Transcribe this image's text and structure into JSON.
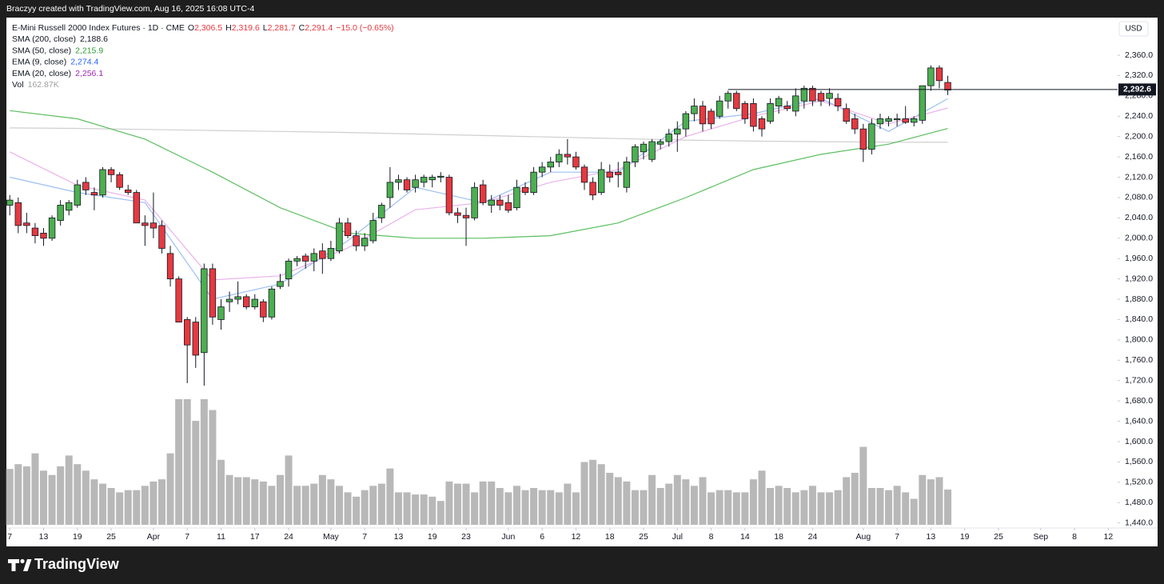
{
  "attribution": "Braczyy created with TradingView.com, Aug 16, 2025 16:08 UTC-4",
  "brand": "TradingView",
  "chart_data": {
    "type": "candlestick",
    "symbol": "E-Mini Russell 2000 Index Futures · 1D · CME",
    "ohlc_legend": [
      {
        "key": "O",
        "value": 2306.5,
        "label": "2,306.5"
      },
      {
        "key": "H",
        "value": 2319.6,
        "label": "2,319.6"
      },
      {
        "key": "L",
        "value": 2281.7,
        "label": "2,281.7"
      },
      {
        "key": "C",
        "value": 2291.4,
        "label": "2,291.4"
      }
    ],
    "change": {
      "value": -15.0,
      "label": "−15.0 (−0.65%)"
    },
    "currency": "USD",
    "up_color": "#4caf50",
    "down_color": "#e53940",
    "open": [
      2065,
      2070,
      2030,
      2020,
      2010,
      2000,
      2035,
      2055,
      2065,
      2110,
      2090,
      2085,
      2135,
      2125,
      2095,
      2090,
      2030,
      2030,
      2025,
      1970,
      1920,
      1840,
      1835,
      1775,
      1940,
      1840,
      1875,
      1880,
      1885,
      1865,
      1875,
      1845,
      1905,
      1920,
      1955,
      1965,
      1955,
      1975,
      1960,
      1975,
      2030,
      2005,
      1985,
      1995,
      2040,
      2080,
      2110,
      2115,
      2100,
      2110,
      2115,
      2120,
      2120,
      2050,
      2045,
      2040,
      2105,
      2065,
      2075,
      2070,
      2060,
      2100,
      2090,
      2130,
      2140,
      2150,
      2165,
      2160,
      2140,
      2110,
      2090,
      2130,
      2130,
      2100,
      2150,
      2170,
      2155,
      2185,
      2190,
      2205,
      2215,
      2245,
      2260,
      2250,
      2240,
      2270,
      2285,
      2265,
      2265,
      2235,
      2230,
      2260,
      2260,
      2250,
      2270,
      2295,
      2285,
      2275,
      2275,
      2255,
      2235,
      2215,
      2175,
      2225,
      2230,
      2233,
      2235,
      2228,
      2232,
      2300,
      2335,
      2306.5
    ],
    "high": [
      2085,
      2080,
      2050,
      2030,
      2020,
      2045,
      2075,
      2075,
      2115,
      2120,
      2100,
      2140,
      2140,
      2130,
      2105,
      2095,
      2045,
      2090,
      2035,
      1985,
      1925,
      1845,
      1845,
      1950,
      1950,
      1880,
      1895,
      1915,
      1890,
      1890,
      1880,
      1905,
      1930,
      1960,
      1965,
      1970,
      1980,
      1990,
      1995,
      2040,
      2040,
      2015,
      2010,
      2050,
      2070,
      2140,
      2125,
      2120,
      2125,
      2125,
      2125,
      2130,
      2125,
      2060,
      2060,
      2110,
      2115,
      2085,
      2085,
      2085,
      2115,
      2110,
      2140,
      2150,
      2160,
      2175,
      2195,
      2170,
      2145,
      2120,
      2150,
      2145,
      2150,
      2160,
      2185,
      2190,
      2195,
      2195,
      2215,
      2230,
      2250,
      2275,
      2270,
      2255,
      2280,
      2290,
      2290,
      2270,
      2275,
      2240,
      2275,
      2280,
      2270,
      2295,
      2300,
      2300,
      2290,
      2295,
      2285,
      2265,
      2245,
      2225,
      2235,
      2245,
      2240,
      2245,
      2260,
      2240,
      2300,
      2340,
      2340,
      2319.6
    ],
    "low": [
      2045,
      2010,
      2010,
      1990,
      1985,
      1995,
      2025,
      2045,
      2060,
      2085,
      2055,
      2080,
      2110,
      2095,
      2085,
      2030,
      1985,
      2000,
      1970,
      1905,
      1835,
      1715,
      1745,
      1710,
      1830,
      1820,
      1855,
      1870,
      1860,
      1860,
      1835,
      1840,
      1900,
      1905,
      1945,
      1940,
      1935,
      1930,
      1955,
      1970,
      2000,
      1975,
      1975,
      1990,
      2030,
      2060,
      2095,
      2090,
      2090,
      2100,
      2100,
      2110,
      2045,
      2030,
      1985,
      2035,
      2065,
      2050,
      2055,
      2050,
      2055,
      2085,
      2085,
      2120,
      2130,
      2140,
      2145,
      2135,
      2095,
      2075,
      2085,
      2110,
      2100,
      2090,
      2140,
      2155,
      2150,
      2175,
      2180,
      2170,
      2200,
      2230,
      2210,
      2215,
      2235,
      2255,
      2250,
      2225,
      2210,
      2200,
      2225,
      2245,
      2250,
      2240,
      2255,
      2260,
      2260,
      2260,
      2250,
      2225,
      2205,
      2150,
      2165,
      2215,
      2220,
      2220,
      2225,
      2220,
      2225,
      2290,
      2295,
      2281.7
    ],
    "close": [
      2075,
      2025,
      2025,
      2005,
      2000,
      2040,
      2065,
      2070,
      2105,
      2095,
      2085,
      2135,
      2125,
      2100,
      2090,
      2030,
      2025,
      2020,
      1980,
      1920,
      1835,
      1790,
      1770,
      1940,
      1845,
      1865,
      1880,
      1885,
      1865,
      1880,
      1845,
      1900,
      1915,
      1955,
      1960,
      1955,
      1970,
      1960,
      1980,
      2030,
      2005,
      1985,
      2000,
      2035,
      2065,
      2110,
      2115,
      2095,
      2115,
      2120,
      2120,
      2122,
      2050,
      2045,
      2040,
      2100,
      2070,
      2075,
      2065,
      2055,
      2100,
      2090,
      2130,
      2140,
      2150,
      2165,
      2160,
      2140,
      2110,
      2085,
      2135,
      2120,
      2125,
      2150,
      2180,
      2185,
      2190,
      2190,
      2205,
      2215,
      2245,
      2260,
      2225,
      2225,
      2270,
      2285,
      2255,
      2235,
      2220,
      2215,
      2265,
      2275,
      2255,
      2280,
      2295,
      2270,
      2270,
      2285,
      2260,
      2230,
      2215,
      2175,
      2225,
      2235,
      2235,
      2235,
      2228,
      2235,
      2300,
      2335,
      2310,
      2291.4
    ],
    "volume": {
      "name": "Vol",
      "color": "#b8b8b8",
      "label_color": "#a0a0a0",
      "values": [
        258,
        280,
        270,
        330,
        250,
        230,
        270,
        320,
        280,
        250,
        210,
        190,
        170,
        150,
        160,
        160,
        180,
        200,
        210,
        330,
        580,
        580,
        480,
        580,
        530,
        300,
        230,
        220,
        220,
        210,
        200,
        180,
        230,
        320,
        180,
        180,
        190,
        230,
        210,
        180,
        150,
        130,
        160,
        180,
        190,
        260,
        150,
        150,
        140,
        140,
        130,
        110,
        200,
        190,
        190,
        150,
        200,
        200,
        170,
        150,
        180,
        160,
        170,
        160,
        160,
        150,
        190,
        150,
        290,
        300,
        280,
        240,
        220,
        200,
        160,
        160,
        230,
        170,
        190,
        230,
        210,
        180,
        220,
        150,
        160,
        160,
        150,
        150,
        210,
        250,
        170,
        180,
        170,
        150,
        160,
        180,
        150,
        150,
        160,
        220,
        240,
        360,
        170,
        170,
        160,
        180,
        150,
        120,
        230,
        210,
        220,
        162.87
      ],
      "last": {
        "value": 162.87,
        "label": "162.87K"
      }
    },
    "indicators": [
      {
        "name": "SMA (200, close)",
        "color": "#cfcfcf",
        "label_color": "#131722",
        "x": [
          0,
          8,
          16,
          24,
          32,
          40,
          48,
          56,
          64,
          72,
          80,
          88,
          96,
          104,
          111
        ],
        "values": [
          2217,
          2216,
          2214,
          2212,
          2210,
          2208,
          2205,
          2202,
          2199,
          2196,
          2193,
          2191,
          2190,
          2189,
          2188.6
        ],
        "last": {
          "value": 2188.6,
          "label": "2,188.6"
        }
      },
      {
        "name": "SMA (50, close)",
        "color": "#5cbf60",
        "label_color": "#2e9b35",
        "x": [
          0,
          8,
          16,
          24,
          32,
          40,
          48,
          56,
          64,
          72,
          80,
          88,
          96,
          104,
          111
        ],
        "values": [
          2251,
          2235,
          2195,
          2130,
          2060,
          2010,
          2000,
          2000,
          2005,
          2030,
          2080,
          2135,
          2165,
          2185,
          2215.9
        ],
        "last": {
          "value": 2215.9,
          "label": "2,215.9"
        }
      },
      {
        "name": "EMA (9, close)",
        "color": "#9cc0f2",
        "label_color": "#2962ff",
        "x": [
          0,
          8,
          16,
          24,
          32,
          40,
          48,
          56,
          64,
          72,
          80,
          88,
          96,
          104,
          111
        ],
        "values": [
          2120,
          2090,
          2070,
          1880,
          1910,
          1995,
          2100,
          2070,
          2130,
          2130,
          2230,
          2245,
          2275,
          2210,
          2274.4
        ],
        "last": {
          "value": 2274.4,
          "label": "2,274.4"
        }
      },
      {
        "name": "EMA (20, close)",
        "color": "#eab2ec",
        "label_color": "#9c27b0",
        "x": [
          0,
          8,
          16,
          24,
          32,
          40,
          48,
          56,
          64,
          72,
          80,
          88,
          96,
          104,
          111
        ],
        "values": [
          2170,
          2104,
          2075,
          1918,
          1926,
          1981,
          2056,
          2070,
          2110,
          2135,
          2200,
          2240,
          2270,
          2225,
          2256.1
        ],
        "last": {
          "value": 2256.1,
          "label": "2,256.1"
        }
      }
    ],
    "price_line": {
      "value": 2292.6,
      "label": "2,292.6",
      "start": 85
    },
    "xlim": [
      -0.4,
      131.1
    ],
    "xticks": [
      {
        "value": 0,
        "label": "7"
      },
      {
        "value": 4,
        "label": "13"
      },
      {
        "value": 8,
        "label": "19"
      },
      {
        "value": 12,
        "label": "25"
      },
      {
        "value": 17,
        "label": "Apr"
      },
      {
        "value": 21,
        "label": "7"
      },
      {
        "value": 25,
        "label": "11"
      },
      {
        "value": 29,
        "label": "17"
      },
      {
        "value": 33,
        "label": "24"
      },
      {
        "value": 38,
        "label": "May"
      },
      {
        "value": 42,
        "label": "7"
      },
      {
        "value": 46,
        "label": "13"
      },
      {
        "value": 50,
        "label": "19"
      },
      {
        "value": 54,
        "label": "23"
      },
      {
        "value": 59,
        "label": "Jun"
      },
      {
        "value": 63,
        "label": "6"
      },
      {
        "value": 67,
        "label": "12"
      },
      {
        "value": 71,
        "label": "18"
      },
      {
        "value": 75,
        "label": "25"
      },
      {
        "value": 79,
        "label": "Jul"
      },
      {
        "value": 83,
        "label": "8"
      },
      {
        "value": 87,
        "label": "14"
      },
      {
        "value": 91,
        "label": "18"
      },
      {
        "value": 95,
        "label": "24"
      },
      {
        "value": 101,
        "label": "Aug"
      },
      {
        "value": 105,
        "label": "7"
      },
      {
        "value": 109,
        "label": "13"
      },
      {
        "value": 113,
        "label": "19"
      },
      {
        "value": 117,
        "label": "25"
      },
      {
        "value": 122,
        "label": "Sep"
      },
      {
        "value": 126,
        "label": "8"
      },
      {
        "value": 130,
        "label": "12"
      }
    ],
    "ylim": [
      1430,
      2434
    ],
    "yticks": [
      {
        "value": 2360,
        "label": "2,360.0"
      },
      {
        "value": 2320,
        "label": "2,320.0"
      },
      {
        "value": 2280,
        "label": "2,280.0"
      },
      {
        "value": 2240,
        "label": "2,240.0"
      },
      {
        "value": 2200,
        "label": "2,200.0"
      },
      {
        "value": 2160,
        "label": "2,160.0"
      },
      {
        "value": 2120,
        "label": "2,120.0"
      },
      {
        "value": 2080,
        "label": "2,080.0"
      },
      {
        "value": 2040,
        "label": "2,040.0"
      },
      {
        "value": 2000,
        "label": "2,000.0"
      },
      {
        "value": 1960,
        "label": "1,960.0"
      },
      {
        "value": 1920,
        "label": "1,920.0"
      },
      {
        "value": 1880,
        "label": "1,880.0"
      },
      {
        "value": 1840,
        "label": "1,840.0"
      },
      {
        "value": 1800,
        "label": "1,800.0"
      },
      {
        "value": 1760,
        "label": "1,760.0"
      },
      {
        "value": 1720,
        "label": "1,720.0"
      },
      {
        "value": 1680,
        "label": "1,680.0"
      },
      {
        "value": 1640,
        "label": "1,640.0"
      },
      {
        "value": 1600,
        "label": "1,600.0"
      },
      {
        "value": 1560,
        "label": "1,560.0"
      },
      {
        "value": 1520,
        "label": "1,520.0"
      },
      {
        "value": 1480,
        "label": "1,480.0"
      },
      {
        "value": 1440,
        "label": "1,440.0"
      }
    ],
    "grid": false
  }
}
